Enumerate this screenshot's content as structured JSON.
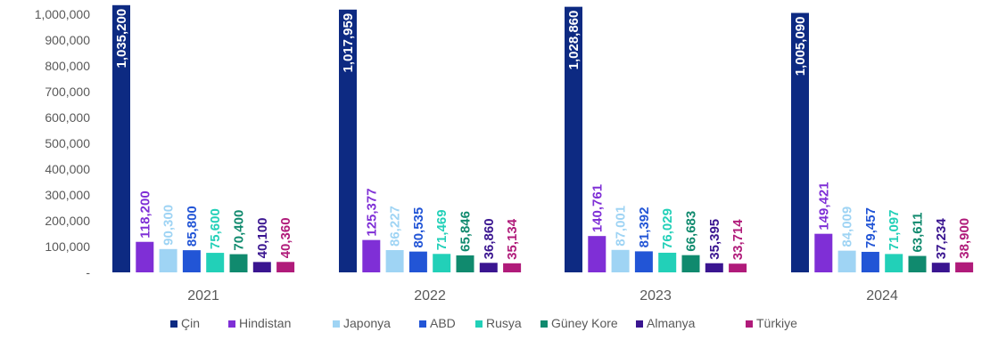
{
  "chart_data": {
    "type": "bar",
    "title": "",
    "xlabel": "",
    "ylabel": "",
    "categories": [
      "2021",
      "2022",
      "2023",
      "2024"
    ],
    "ylim": [
      0,
      1000000
    ],
    "yticks": [
      "-",
      "100,000",
      "200,000",
      "300,000",
      "400,000",
      "500,000",
      "600,000",
      "700,000",
      "800,000",
      "900,000",
      "1,000,000"
    ],
    "grid": false,
    "legend_position": "bottom",
    "series": [
      {
        "name": "Çin",
        "color": "#0d2a82",
        "label_color": "#ffffff",
        "label_inside": true,
        "values": [
          1035200,
          1017959,
          1028860,
          1005090
        ],
        "labels": [
          "1,035,200",
          "1,017,959",
          "1,028,860",
          "1,005,090"
        ]
      },
      {
        "name": "Hindistan",
        "color": "#7f2fd6",
        "label_color": "#7f2fd6",
        "values": [
          118200,
          125377,
          140761,
          149421
        ],
        "labels": [
          "118,200",
          "125,377",
          "140,761",
          "149,421"
        ]
      },
      {
        "name": "Japonya",
        "color": "#9fd4f4",
        "label_color": "#9fd4f4",
        "values": [
          90300,
          86227,
          87001,
          84009
        ],
        "labels": [
          "90,300",
          "86,227",
          "87,001",
          "84,009"
        ]
      },
      {
        "name": "ABD",
        "color": "#2255d6",
        "label_color": "#2255d6",
        "values": [
          85800,
          80535,
          81392,
          79457
        ],
        "labels": [
          "85,800",
          "80,535",
          "81,392",
          "79,457"
        ]
      },
      {
        "name": "Rusya",
        "color": "#22d0b8",
        "label_color": "#22d0b8",
        "values": [
          75600,
          71469,
          76029,
          71097
        ],
        "labels": [
          "75,600",
          "71,469",
          "76,029",
          "71,097"
        ]
      },
      {
        "name": "Güney Kore",
        "color": "#108a6e",
        "label_color": "#108a6e",
        "values": [
          70400,
          65846,
          66683,
          63611
        ],
        "labels": [
          "70,400",
          "65,846",
          "66,683",
          "63,611"
        ]
      },
      {
        "name": "Almanya",
        "color": "#3a1590",
        "label_color": "#3a1590",
        "values": [
          40100,
          36860,
          35395,
          37234
        ],
        "labels": [
          "40,100",
          "36,860",
          "35,395",
          "37,234"
        ]
      },
      {
        "name": "Türkiye",
        "color": "#b01b7a",
        "label_color": "#b01b7a",
        "values": [
          40360,
          35134,
          33714,
          38900
        ],
        "labels": [
          "40,360",
          "35,134",
          "33,714",
          "38,900"
        ]
      }
    ]
  }
}
